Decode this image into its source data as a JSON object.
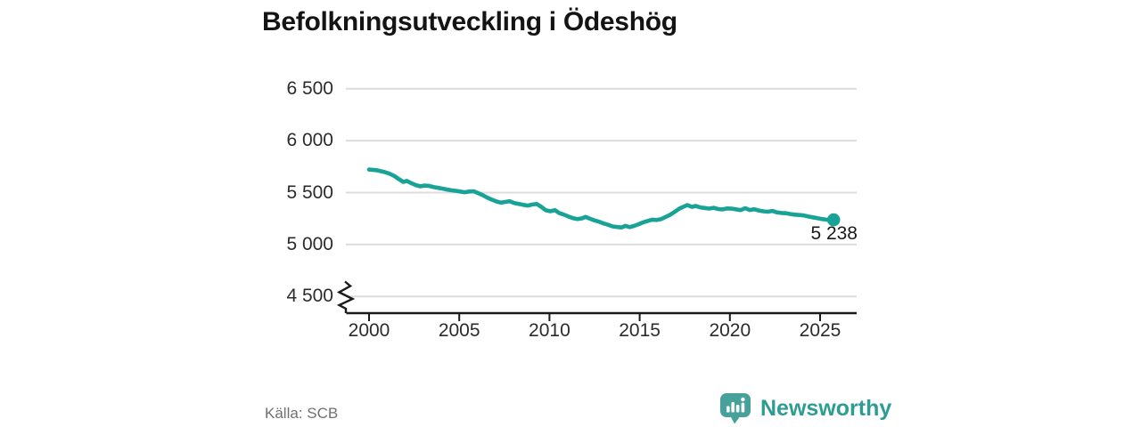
{
  "title": "Befolkningsutveckling i Ödeshög",
  "source": "Källa: SCB",
  "branding": {
    "name": "Newsworthy",
    "icon": "newsworthy-chart-bubble-icon"
  },
  "colors": {
    "line": "#19a396",
    "grid": "#dcdcdc",
    "axis": "#1a1a1a",
    "title_text": "#141414",
    "tick_label_text": "#2b2b2b",
    "source_text": "#707070",
    "brand_icon": "#46a19b",
    "brand_text": "#2d9c93",
    "background": "#ffffff"
  },
  "chart_data": {
    "type": "line",
    "title": "Befolkningsutveckling i Ödeshög",
    "source": "Källa: SCB",
    "xlabel": "",
    "ylabel": "",
    "grid": true,
    "axis_break_at_bottom": true,
    "ylim": [
      4500,
      6650
    ],
    "x_ticks": [
      "2000",
      "2005",
      "2010",
      "2015",
      "2020",
      "2025"
    ],
    "x_tick_years": [
      2000,
      2005,
      2010,
      2015,
      2020,
      2025
    ],
    "y_ticks": [
      "6 500",
      "6 000",
      "5 500",
      "5 000",
      "4 500"
    ],
    "y_tick_values": [
      6500,
      6000,
      5500,
      5000,
      4500
    ],
    "last_point_label": "5 238",
    "last_value": 5238,
    "points": [
      [
        2000.0,
        5722
      ],
      [
        2000.4,
        5716
      ],
      [
        2000.8,
        5700
      ],
      [
        2001.1,
        5685
      ],
      [
        2001.4,
        5660
      ],
      [
        2001.65,
        5630
      ],
      [
        2001.9,
        5603
      ],
      [
        2002.1,
        5612
      ],
      [
        2002.35,
        5590
      ],
      [
        2002.6,
        5572
      ],
      [
        2002.85,
        5560
      ],
      [
        2003.05,
        5568
      ],
      [
        2003.3,
        5565
      ],
      [
        2003.6,
        5552
      ],
      [
        2003.85,
        5545
      ],
      [
        2004.1,
        5538
      ],
      [
        2004.3,
        5530
      ],
      [
        2004.55,
        5522
      ],
      [
        2004.8,
        5517
      ],
      [
        2005.05,
        5510
      ],
      [
        2005.3,
        5503
      ],
      [
        2005.55,
        5510
      ],
      [
        2005.8,
        5513
      ],
      [
        2006.05,
        5495
      ],
      [
        2006.3,
        5475
      ],
      [
        2006.55,
        5452
      ],
      [
        2006.8,
        5432
      ],
      [
        2007.05,
        5415
      ],
      [
        2007.3,
        5403
      ],
      [
        2007.55,
        5410
      ],
      [
        2007.8,
        5417
      ],
      [
        2008.05,
        5400
      ],
      [
        2008.3,
        5390
      ],
      [
        2008.55,
        5382
      ],
      [
        2008.8,
        5375
      ],
      [
        2009.05,
        5385
      ],
      [
        2009.3,
        5390
      ],
      [
        2009.55,
        5362
      ],
      [
        2009.8,
        5330
      ],
      [
        2010.05,
        5320
      ],
      [
        2010.3,
        5331
      ],
      [
        2010.55,
        5302
      ],
      [
        2010.8,
        5288
      ],
      [
        2011.05,
        5270
      ],
      [
        2011.3,
        5254
      ],
      [
        2011.55,
        5246
      ],
      [
        2011.8,
        5252
      ],
      [
        2012.0,
        5266
      ],
      [
        2012.25,
        5248
      ],
      [
        2012.5,
        5232
      ],
      [
        2012.75,
        5220
      ],
      [
        2013.0,
        5203
      ],
      [
        2013.25,
        5190
      ],
      [
        2013.5,
        5175
      ],
      [
        2013.75,
        5169
      ],
      [
        2014.0,
        5164
      ],
      [
        2014.2,
        5180
      ],
      [
        2014.45,
        5168
      ],
      [
        2014.7,
        5180
      ],
      [
        2014.95,
        5196
      ],
      [
        2015.2,
        5214
      ],
      [
        2015.45,
        5228
      ],
      [
        2015.7,
        5240
      ],
      [
        2015.95,
        5236
      ],
      [
        2016.2,
        5246
      ],
      [
        2016.45,
        5266
      ],
      [
        2016.7,
        5288
      ],
      [
        2016.95,
        5316
      ],
      [
        2017.2,
        5346
      ],
      [
        2017.45,
        5366
      ],
      [
        2017.65,
        5380
      ],
      [
        2017.9,
        5362
      ],
      [
        2018.1,
        5372
      ],
      [
        2018.35,
        5358
      ],
      [
        2018.6,
        5352
      ],
      [
        2018.85,
        5346
      ],
      [
        2019.1,
        5354
      ],
      [
        2019.35,
        5342
      ],
      [
        2019.6,
        5338
      ],
      [
        2019.85,
        5348
      ],
      [
        2020.1,
        5346
      ],
      [
        2020.35,
        5338
      ],
      [
        2020.6,
        5331
      ],
      [
        2020.85,
        5350
      ],
      [
        2021.1,
        5332
      ],
      [
        2021.35,
        5340
      ],
      [
        2021.6,
        5328
      ],
      [
        2021.85,
        5320
      ],
      [
        2022.1,
        5316
      ],
      [
        2022.35,
        5324
      ],
      [
        2022.6,
        5310
      ],
      [
        2022.85,
        5304
      ],
      [
        2023.1,
        5302
      ],
      [
        2023.35,
        5294
      ],
      [
        2023.6,
        5288
      ],
      [
        2023.85,
        5284
      ],
      [
        2024.1,
        5280
      ],
      [
        2024.35,
        5270
      ],
      [
        2024.6,
        5262
      ],
      [
        2024.85,
        5254
      ],
      [
        2025.1,
        5246
      ],
      [
        2025.35,
        5240
      ],
      [
        2025.6,
        5236
      ],
      [
        2025.75,
        5238
      ]
    ]
  }
}
